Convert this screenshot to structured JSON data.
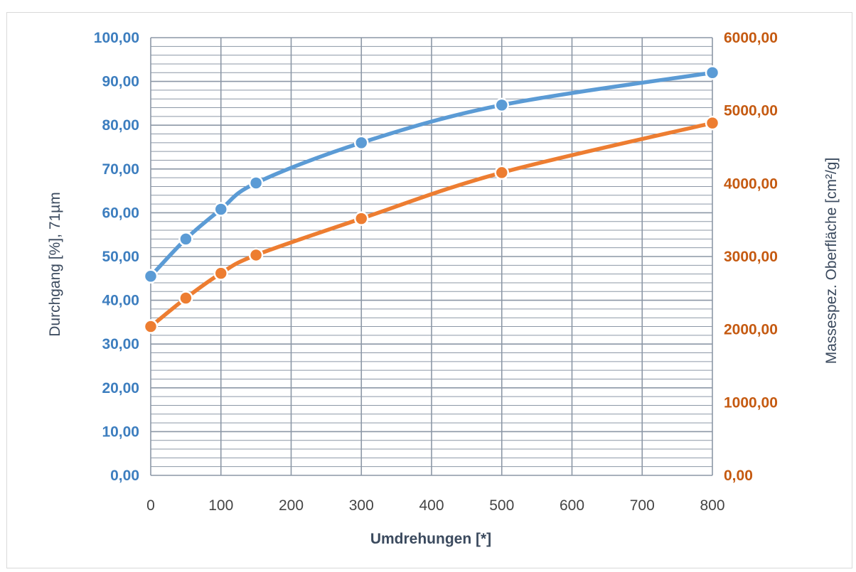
{
  "chart_data": {
    "type": "line",
    "title": "",
    "xlabel": "Umdrehungen [*]",
    "ylabel": "Durchgang [%], 71µm",
    "y2label": "Massespez. Oberfläche [cm²/g]",
    "xlim": [
      0,
      800
    ],
    "ylim": [
      0,
      100
    ],
    "y2lim": [
      0,
      6000
    ],
    "x_ticks": [
      "0",
      "100",
      "200",
      "300",
      "400",
      "500",
      "600",
      "700",
      "800"
    ],
    "y_ticks": [
      "0,00",
      "10,00",
      "20,00",
      "30,00",
      "40,00",
      "50,00",
      "60,00",
      "70,00",
      "80,00",
      "90,00",
      "100,00"
    ],
    "y2_ticks": [
      "0,00",
      "1000,00",
      "2000,00",
      "3000,00",
      "4000,00",
      "5000,00",
      "6000,00"
    ],
    "grid": true,
    "legend": "none",
    "series": [
      {
        "axis": "left",
        "color": "#5b9bd5",
        "x": [
          0,
          50,
          100,
          150,
          300,
          500,
          800
        ],
        "values": [
          45.5,
          54.0,
          60.8,
          66.8,
          76.0,
          84.6,
          92.0
        ]
      },
      {
        "axis": "right",
        "color": "#ed7d31",
        "x": [
          0,
          50,
          100,
          150,
          300,
          500,
          800
        ],
        "values": [
          2040,
          2430,
          2770,
          3020,
          3520,
          4150,
          4830
        ]
      }
    ],
    "colors": {
      "left_axis": "#3d7ebf",
      "right_axis": "#c55a11",
      "grid": "#8c97a6",
      "axis_title": "#3b4a5e"
    }
  }
}
